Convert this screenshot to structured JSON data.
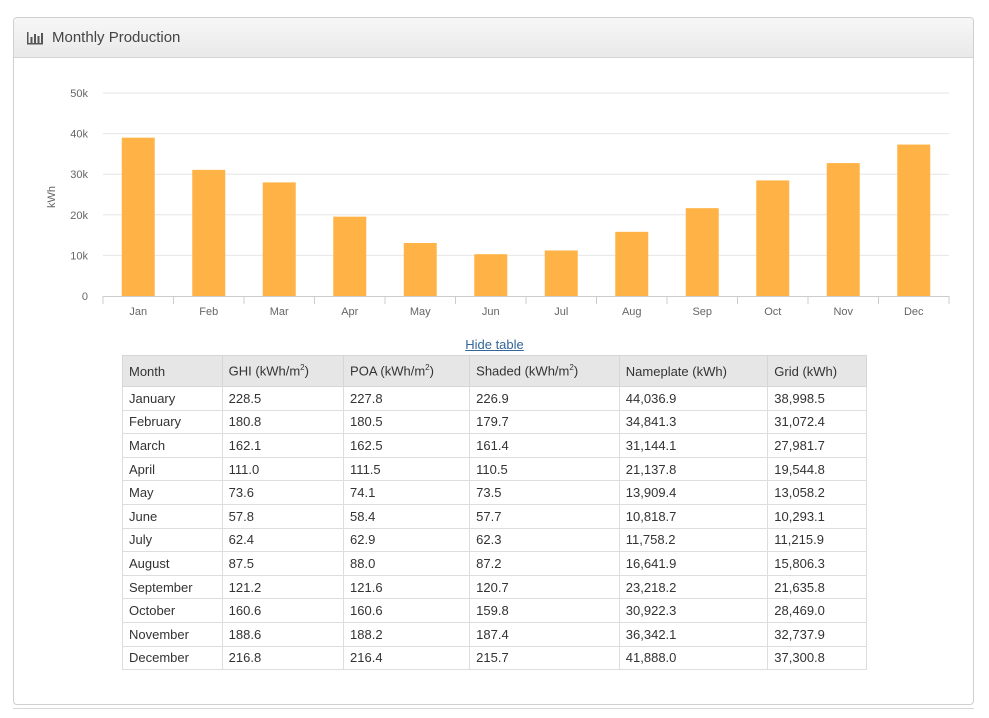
{
  "panel": {
    "title": "Monthly Production",
    "icon": "bar-chart-icon"
  },
  "chart_data": {
    "type": "bar",
    "ylabel": "kWh",
    "xlabel": "",
    "ylim": [
      0,
      50000
    ],
    "yticks": [
      0,
      10000,
      20000,
      30000,
      40000,
      50000
    ],
    "ytick_labels": [
      "0",
      "10k",
      "20k",
      "30k",
      "40k",
      "50k"
    ],
    "categories": [
      "Jan",
      "Feb",
      "Mar",
      "Apr",
      "May",
      "Jun",
      "Jul",
      "Aug",
      "Sep",
      "Oct",
      "Nov",
      "Dec"
    ],
    "values": [
      38998.5,
      31072.4,
      27981.7,
      19544.8,
      13058.2,
      10293.1,
      11215.9,
      15806.3,
      21635.8,
      28469.0,
      32737.9,
      37300.8
    ],
    "grid": true,
    "bar_color": "#ffb347"
  },
  "toggle_label": "Hide table",
  "table": {
    "headers": [
      {
        "text": "Month"
      },
      {
        "text": "GHI (kWh/m",
        "sup": "2",
        "tail": ")"
      },
      {
        "text": "POA (kWh/m",
        "sup": "2",
        "tail": ")"
      },
      {
        "text": "Shaded (kWh/m",
        "sup": "2",
        "tail": ")"
      },
      {
        "text": "Nameplate (kWh)"
      },
      {
        "text": "Grid (kWh)"
      }
    ],
    "rows": [
      [
        "January",
        "228.5",
        "227.8",
        "226.9",
        "44,036.9",
        "38,998.5"
      ],
      [
        "February",
        "180.8",
        "180.5",
        "179.7",
        "34,841.3",
        "31,072.4"
      ],
      [
        "March",
        "162.1",
        "162.5",
        "161.4",
        "31,144.1",
        "27,981.7"
      ],
      [
        "April",
        "111.0",
        "111.5",
        "110.5",
        "21,137.8",
        "19,544.8"
      ],
      [
        "May",
        "73.6",
        "74.1",
        "73.5",
        "13,909.4",
        "13,058.2"
      ],
      [
        "June",
        "57.8",
        "58.4",
        "57.7",
        "10,818.7",
        "10,293.1"
      ],
      [
        "July",
        "62.4",
        "62.9",
        "62.3",
        "11,758.2",
        "11,215.9"
      ],
      [
        "August",
        "87.5",
        "88.0",
        "87.2",
        "16,641.9",
        "15,806.3"
      ],
      [
        "September",
        "121.2",
        "121.6",
        "120.7",
        "23,218.2",
        "21,635.8"
      ],
      [
        "October",
        "160.6",
        "160.6",
        "159.8",
        "30,922.3",
        "28,469.0"
      ],
      [
        "November",
        "188.6",
        "188.2",
        "187.4",
        "36,342.1",
        "32,737.9"
      ],
      [
        "December",
        "216.8",
        "216.4",
        "215.7",
        "41,888.0",
        "37,300.8"
      ]
    ]
  }
}
